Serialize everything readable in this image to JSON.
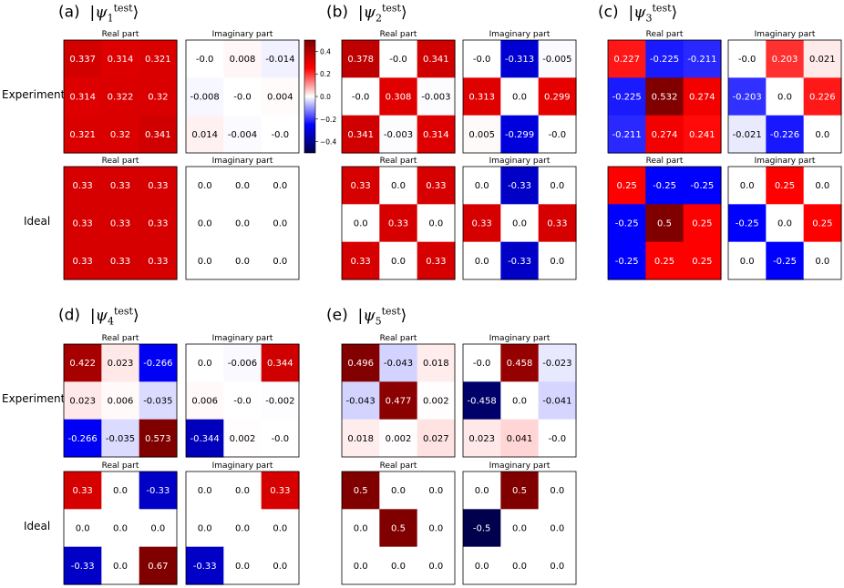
{
  "figure": {
    "row_labels": [
      "Experiment",
      "Ideal"
    ],
    "real_title": "Real part",
    "imag_title": "Imaginary part",
    "colorbar": {
      "vmin": -0.5,
      "vmax": 0.5,
      "ticks": [
        0.4,
        0.2,
        0.0,
        -0.2,
        -0.4
      ],
      "tick_labels": [
        "0.4",
        "0.2",
        "0.0",
        "−0.2",
        "−0.4"
      ],
      "colors": {
        "low": "#00004c",
        "mid": "#ffffff",
        "high": "#800000"
      }
    }
  },
  "chart_data": [
    {
      "type": "heatmap",
      "label": "(a)",
      "state_sub": "1",
      "state_sup": "test",
      "experiment": {
        "real": [
          [
            "0.337",
            "0.314",
            "0.321"
          ],
          [
            "0.314",
            "0.322",
            "0.32"
          ],
          [
            "0.321",
            "0.32",
            "0.341"
          ]
        ],
        "imag": [
          [
            "-0.0",
            "0.008",
            "-0.014"
          ],
          [
            "-0.008",
            "-0.0",
            "0.004"
          ],
          [
            "0.014",
            "-0.004",
            "-0.0"
          ]
        ]
      },
      "ideal": {
        "real": [
          [
            "0.33",
            "0.33",
            "0.33"
          ],
          [
            "0.33",
            "0.33",
            "0.33"
          ],
          [
            "0.33",
            "0.33",
            "0.33"
          ]
        ],
        "imag": [
          [
            "0.0",
            "0.0",
            "0.0"
          ],
          [
            "0.0",
            "0.0",
            "0.0"
          ],
          [
            "0.0",
            "0.0",
            "0.0"
          ]
        ]
      }
    },
    {
      "type": "heatmap",
      "label": "(b)",
      "state_sub": "2",
      "state_sup": "test",
      "experiment": {
        "real": [
          [
            "0.378",
            "-0.0",
            "0.341"
          ],
          [
            "-0.0",
            "0.308",
            "-0.003"
          ],
          [
            "0.341",
            "-0.003",
            "0.314"
          ]
        ],
        "imag": [
          [
            "-0.0",
            "-0.313",
            "-0.005"
          ],
          [
            "0.313",
            "0.0",
            "0.299"
          ],
          [
            "0.005",
            "-0.299",
            "-0.0"
          ]
        ]
      },
      "ideal": {
        "real": [
          [
            "0.33",
            "0.0",
            "0.33"
          ],
          [
            "0.0",
            "0.33",
            "0.0"
          ],
          [
            "0.33",
            "0.0",
            "0.33"
          ]
        ],
        "imag": [
          [
            "0.0",
            "-0.33",
            "0.0"
          ],
          [
            "0.33",
            "0.0",
            "0.33"
          ],
          [
            "0.0",
            "-0.33",
            "0.0"
          ]
        ]
      }
    },
    {
      "type": "heatmap",
      "label": "(c)",
      "state_sub": "3",
      "state_sup": "test",
      "experiment": {
        "real": [
          [
            "0.227",
            "-0.225",
            "-0.211"
          ],
          [
            "-0.225",
            "0.532",
            "0.274"
          ],
          [
            "-0.211",
            "0.274",
            "0.241"
          ]
        ],
        "imag": [
          [
            "-0.0",
            "0.203",
            "0.021"
          ],
          [
            "-0.203",
            "0.0",
            "0.226"
          ],
          [
            "-0.021",
            "-0.226",
            "0.0"
          ]
        ]
      },
      "ideal": {
        "real": [
          [
            "0.25",
            "-0.25",
            "-0.25"
          ],
          [
            "-0.25",
            "0.5",
            "0.25"
          ],
          [
            "-0.25",
            "0.25",
            "0.25"
          ]
        ],
        "imag": [
          [
            "0.0",
            "0.25",
            "0.0"
          ],
          [
            "-0.25",
            "0.0",
            "0.25"
          ],
          [
            "0.0",
            "-0.25",
            "0.0"
          ]
        ]
      }
    },
    {
      "type": "heatmap",
      "label": "(d)",
      "state_sub": "4",
      "state_sup": "test",
      "experiment": {
        "real": [
          [
            "0.422",
            "0.023",
            "-0.266"
          ],
          [
            "0.023",
            "0.006",
            "-0.035"
          ],
          [
            "-0.266",
            "-0.035",
            "0.573"
          ]
        ],
        "imag": [
          [
            "0.0",
            "-0.006",
            "0.344"
          ],
          [
            "0.006",
            "-0.0",
            "-0.002"
          ],
          [
            "-0.344",
            "0.002",
            "-0.0"
          ]
        ]
      },
      "ideal": {
        "real": [
          [
            "0.33",
            "0.0",
            "-0.33"
          ],
          [
            "0.0",
            "0.0",
            "0.0"
          ],
          [
            "-0.33",
            "0.0",
            "0.67"
          ]
        ],
        "imag": [
          [
            "0.0",
            "0.0",
            "0.33"
          ],
          [
            "0.0",
            "0.0",
            "0.0"
          ],
          [
            "-0.33",
            "0.0",
            "0.0"
          ]
        ]
      }
    },
    {
      "type": "heatmap",
      "label": "(e)",
      "state_sub": "5",
      "state_sup": "test",
      "experiment": {
        "real": [
          [
            "0.496",
            "-0.043",
            "0.018"
          ],
          [
            "-0.043",
            "0.477",
            "0.002"
          ],
          [
            "0.018",
            "0.002",
            "0.027"
          ]
        ],
        "imag": [
          [
            "-0.0",
            "0.458",
            "-0.023"
          ],
          [
            "-0.458",
            "0.0",
            "-0.041"
          ],
          [
            "0.023",
            "0.041",
            "-0.0"
          ]
        ]
      },
      "ideal": {
        "real": [
          [
            "0.5",
            "0.0",
            "0.0"
          ],
          [
            "0.0",
            "0.5",
            "0.0"
          ],
          [
            "0.0",
            "0.0",
            "0.0"
          ]
        ],
        "imag": [
          [
            "0.0",
            "0.5",
            "0.0"
          ],
          [
            "-0.5",
            "0.0",
            "0.0"
          ],
          [
            "0.0",
            "0.0",
            "0.0"
          ]
        ]
      }
    }
  ]
}
